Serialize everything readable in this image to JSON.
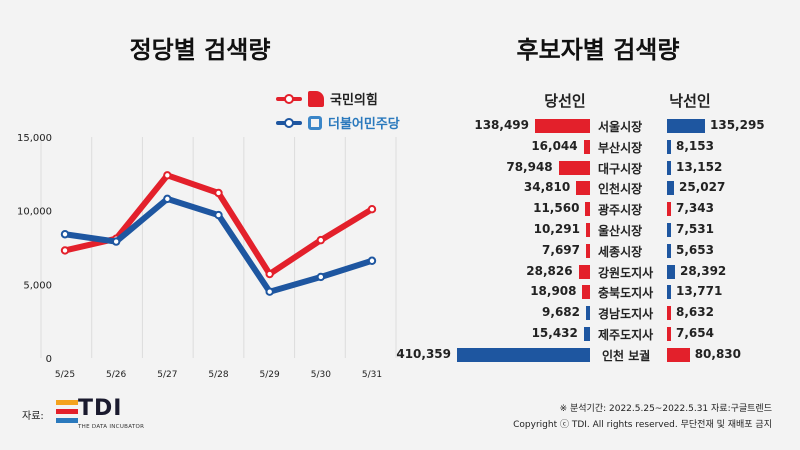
{
  "left": {
    "title": "정당별 검색량",
    "legend": [
      {
        "name": "국민의힘",
        "color": "#e3202b"
      },
      {
        "name": "더불어민주당",
        "color": "#1e56a0"
      }
    ]
  },
  "right": {
    "title": "후보자별 검색량",
    "head_winner": "당선인",
    "head_loser": "낙선인"
  },
  "chart_data": [
    {
      "type": "line",
      "title": "정당별 검색량",
      "x": [
        "5/25",
        "5/26",
        "5/27",
        "5/28",
        "5/29",
        "5/30",
        "5/31"
      ],
      "ylim": [
        0,
        15000
      ],
      "yticks": [
        "0",
        "5,000",
        "10,000",
        "15,000"
      ],
      "ytick_values": [
        0,
        5000,
        10000,
        15000
      ],
      "grid": "vertical",
      "series": [
        {
          "name": "국민의힘",
          "color": "#e3202b",
          "values": [
            7300,
            8100,
            12400,
            11200,
            5700,
            8000,
            10100
          ]
        },
        {
          "name": "더불어민주당",
          "color": "#1e56a0",
          "values": [
            8400,
            7900,
            10800,
            9700,
            4500,
            5500,
            6600
          ]
        }
      ]
    },
    {
      "type": "bar",
      "title": "후보자별 검색량",
      "orientation": "horizontal-diverging",
      "categories": [
        "서울시장",
        "부산시장",
        "대구시장",
        "인천시장",
        "광주시장",
        "울산시장",
        "세종시장",
        "강원도지사",
        "충북도지사",
        "경남도지사",
        "제주도지사",
        "인천 보궐"
      ],
      "series": [
        {
          "name": "당선인",
          "values": [
            138499,
            16044,
            78948,
            34810,
            11560,
            10291,
            7697,
            28826,
            18908,
            9682,
            15432,
            410359
          ],
          "labels": [
            "138,499",
            "16,044",
            "78,948",
            "34,810",
            "11,560",
            "10,291",
            "7,697",
            "28,826",
            "18,908",
            "9,682",
            "15,432",
            "410,359"
          ],
          "colors": [
            "#e3202b",
            "#e3202b",
            "#e3202b",
            "#e3202b",
            "#e3202b",
            "#e3202b",
            "#e3202b",
            "#e3202b",
            "#e3202b",
            "#1e56a0",
            "#1e56a0",
            "#1e56a0"
          ]
        },
        {
          "name": "낙선인",
          "values": [
            135295,
            8153,
            13152,
            25027,
            7343,
            7531,
            5653,
            28392,
            13771,
            8632,
            7654,
            80830
          ],
          "labels": [
            "135,295",
            "8,153",
            "13,152",
            "25,027",
            "7,343",
            "7,531",
            "5,653",
            "28,392",
            "13,771",
            "8,632",
            "7,654",
            "80,830"
          ],
          "colors": [
            "#1e56a0",
            "#1e56a0",
            "#1e56a0",
            "#1e56a0",
            "#e3202b",
            "#1e56a0",
            "#1e56a0",
            "#1e56a0",
            "#1e56a0",
            "#e3202b",
            "#e3202b",
            "#e3202b"
          ]
        }
      ]
    }
  ],
  "footer": {
    "source_label": "자료:",
    "logo_text": "TDI",
    "logo_sub": "THE DATA INCUBATOR",
    "period_note": "※ 분석기간: 2022.5.25~2022.5.31   자료:구글트렌드",
    "copyright": "Copyright ⓒ TDI. All rights reserved. 무단전재 및 재배포 금지"
  }
}
